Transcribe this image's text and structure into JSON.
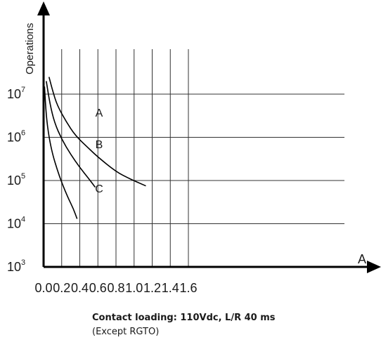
{
  "chart_data": {
    "type": "line",
    "title": "",
    "xlabel": "A",
    "ylabel": "Operations",
    "y_scale": "log",
    "xlim": [
      0,
      1.7
    ],
    "ylim": [
      1000,
      30000000
    ],
    "x_ticks": [
      "0.0",
      "0.2",
      "0.4",
      "0.6",
      "0.8",
      "1.0",
      "1.2",
      "1.4",
      "1.6"
    ],
    "y_ticks": [
      {
        "base": "10",
        "exp": "3",
        "value": 1000
      },
      {
        "base": "10",
        "exp": "4",
        "value": 10000
      },
      {
        "base": "10",
        "exp": "5",
        "value": 100000
      },
      {
        "base": "10",
        "exp": "6",
        "value": 1000000
      },
      {
        "base": "10",
        "exp": "7",
        "value": 10000000
      }
    ],
    "grid": true,
    "series": [
      {
        "name": "A",
        "points": [
          [
            0.06,
            25000000
          ],
          [
            0.1,
            12000000
          ],
          [
            0.15,
            5500000
          ],
          [
            0.25,
            2300000
          ],
          [
            0.35,
            1100000
          ],
          [
            0.5,
            550000
          ],
          [
            0.6,
            350000
          ],
          [
            0.8,
            160000
          ],
          [
            0.95,
            110000
          ],
          [
            1.1,
            80000
          ],
          [
            1.13,
            75000
          ]
        ]
      },
      {
        "name": "B",
        "points": [
          [
            0.03,
            20000000
          ],
          [
            0.07,
            6000000
          ],
          [
            0.12,
            2200000
          ],
          [
            0.2,
            900000
          ],
          [
            0.3,
            400000
          ],
          [
            0.4,
            200000
          ],
          [
            0.5,
            110000
          ],
          [
            0.57,
            70000
          ]
        ]
      },
      {
        "name": "C",
        "points": [
          [
            0.01,
            15000000
          ],
          [
            0.03,
            3000000
          ],
          [
            0.06,
            1000000
          ],
          [
            0.1,
            400000
          ],
          [
            0.15,
            180000
          ],
          [
            0.2,
            90000
          ],
          [
            0.27,
            40000
          ],
          [
            0.33,
            22000
          ],
          [
            0.37,
            13000
          ]
        ]
      }
    ],
    "caption": {
      "line1": "Contact loading: 110Vdc, L/R 40 ms",
      "line2": "(Except RGTO)"
    }
  }
}
